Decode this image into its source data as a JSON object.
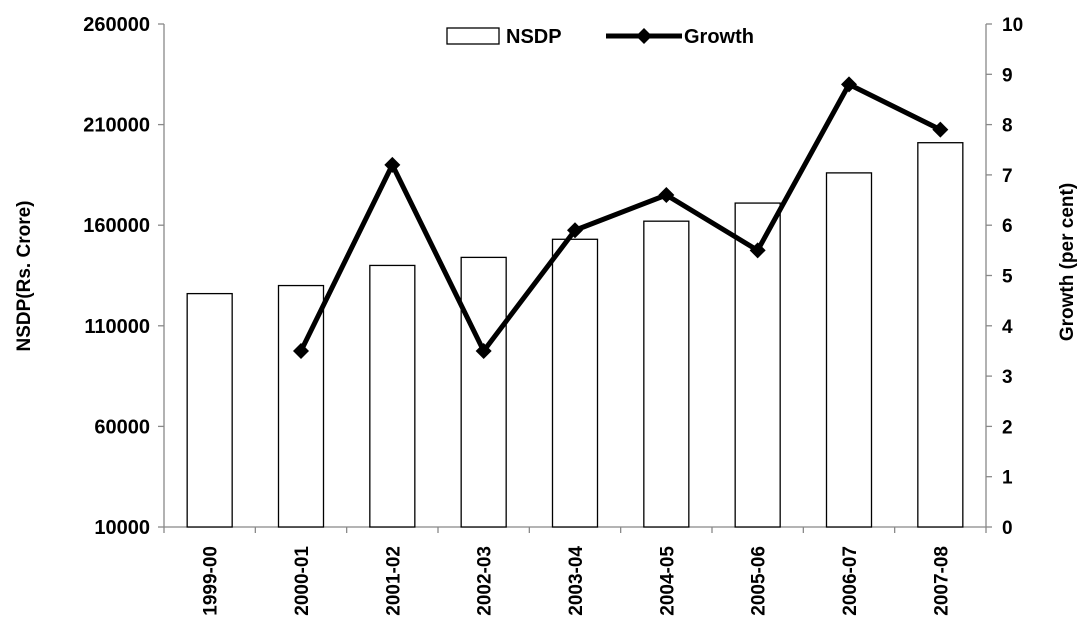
{
  "chart_data": {
    "type": "bar",
    "categories": [
      "1999-00",
      "2000-01",
      "2001-02",
      "2002-03",
      "2003-04",
      "2004-05",
      "2005-06",
      "2006-07",
      "2007-08"
    ],
    "series": [
      {
        "name": "NSDP",
        "type": "bar",
        "axis": "left",
        "values": [
          126000,
          130000,
          140000,
          144000,
          153000,
          162000,
          171000,
          186000,
          201000
        ]
      },
      {
        "name": "Growth",
        "type": "line",
        "axis": "right",
        "marker": "diamond",
        "values": [
          null,
          3.5,
          7.2,
          3.5,
          5.9,
          6.6,
          5.5,
          8.8,
          7.9
        ]
      }
    ],
    "ylabel_left": "NSDP(Rs. Crore)",
    "ylabel_right": "Growth (per cent)",
    "ylim_left": [
      10000,
      260000
    ],
    "yticks_left": [
      10000,
      60000,
      110000,
      160000,
      210000,
      260000
    ],
    "ylim_right": [
      0,
      10
    ],
    "yticks_right": [
      0,
      1,
      2,
      3,
      4,
      5,
      6,
      7,
      8,
      9,
      10
    ],
    "legend": {
      "placement": "top-center",
      "entries": [
        "NSDP",
        "Growth"
      ]
    },
    "grid": false,
    "colors": {
      "bar_fill": "#ffffff",
      "bar_stroke": "#000000",
      "line": "#000000"
    }
  }
}
